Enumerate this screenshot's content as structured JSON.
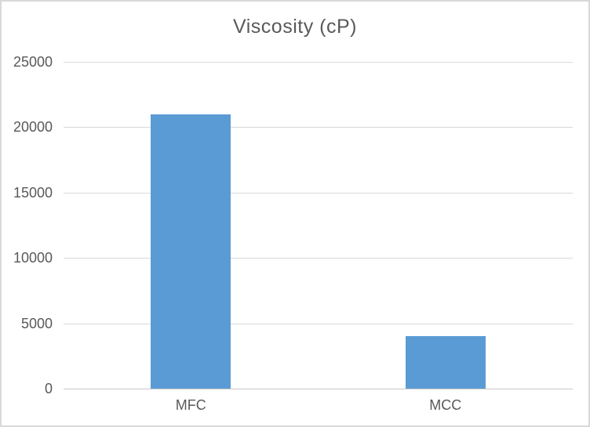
{
  "chart_data": {
    "type": "bar",
    "title": "Viscosity (cP)",
    "categories": [
      "MFC",
      "MCC"
    ],
    "values": [
      21000,
      4000
    ],
    "xlabel": "",
    "ylabel": "",
    "ylim": [
      0,
      25000
    ],
    "ytick_step": 5000,
    "ytick_labels": [
      "0",
      "5000",
      "10000",
      "15000",
      "20000",
      "25000"
    ],
    "grid": true,
    "legend": false,
    "colors": {
      "bar": "#5b9bd5",
      "gridline": "#d9d9d9",
      "axis_line": "#c9c9c9",
      "text": "#595959",
      "background": "#ffffff",
      "border": "#d9d9d9"
    }
  }
}
